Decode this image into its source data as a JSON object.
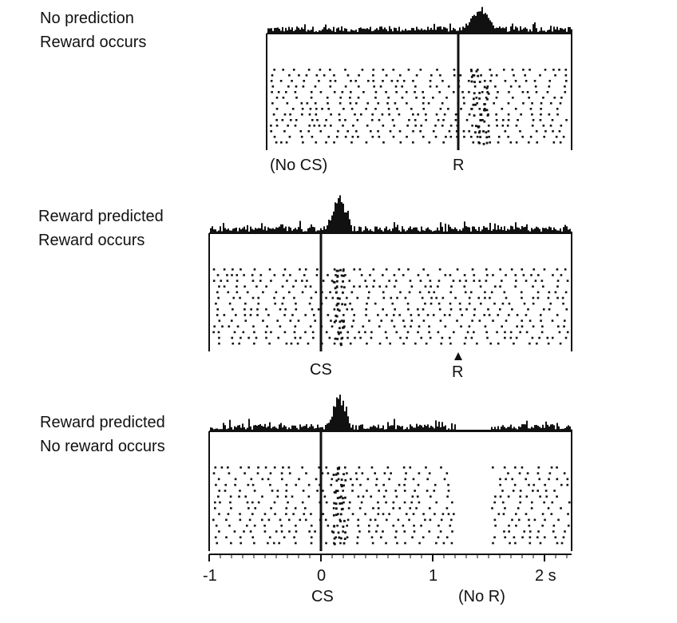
{
  "panels": [
    {
      "id": "no-prediction",
      "title_line1": "No prediction",
      "title_line2": "Reward occurs",
      "markers": [
        {
          "label": "(No CS)"
        },
        {
          "label": "R"
        }
      ]
    },
    {
      "id": "reward-predicted",
      "title_line1": "Reward predicted",
      "title_line2": "Reward occurs",
      "markers": [
        {
          "label": "CS"
        },
        {
          "label": "R"
        }
      ]
    },
    {
      "id": "no-reward",
      "title_line1": "Reward predicted",
      "title_line2": "No reward occurs",
      "markers": [
        {
          "label": "CS"
        },
        {
          "label": "(No R)"
        }
      ]
    }
  ],
  "time_axis": {
    "ticks": [
      {
        "value": -1,
        "label": "-1"
      },
      {
        "value": 0,
        "label": "0"
      },
      {
        "value": 1,
        "label": "1"
      },
      {
        "value": 2,
        "label": "2 s"
      }
    ]
  }
}
